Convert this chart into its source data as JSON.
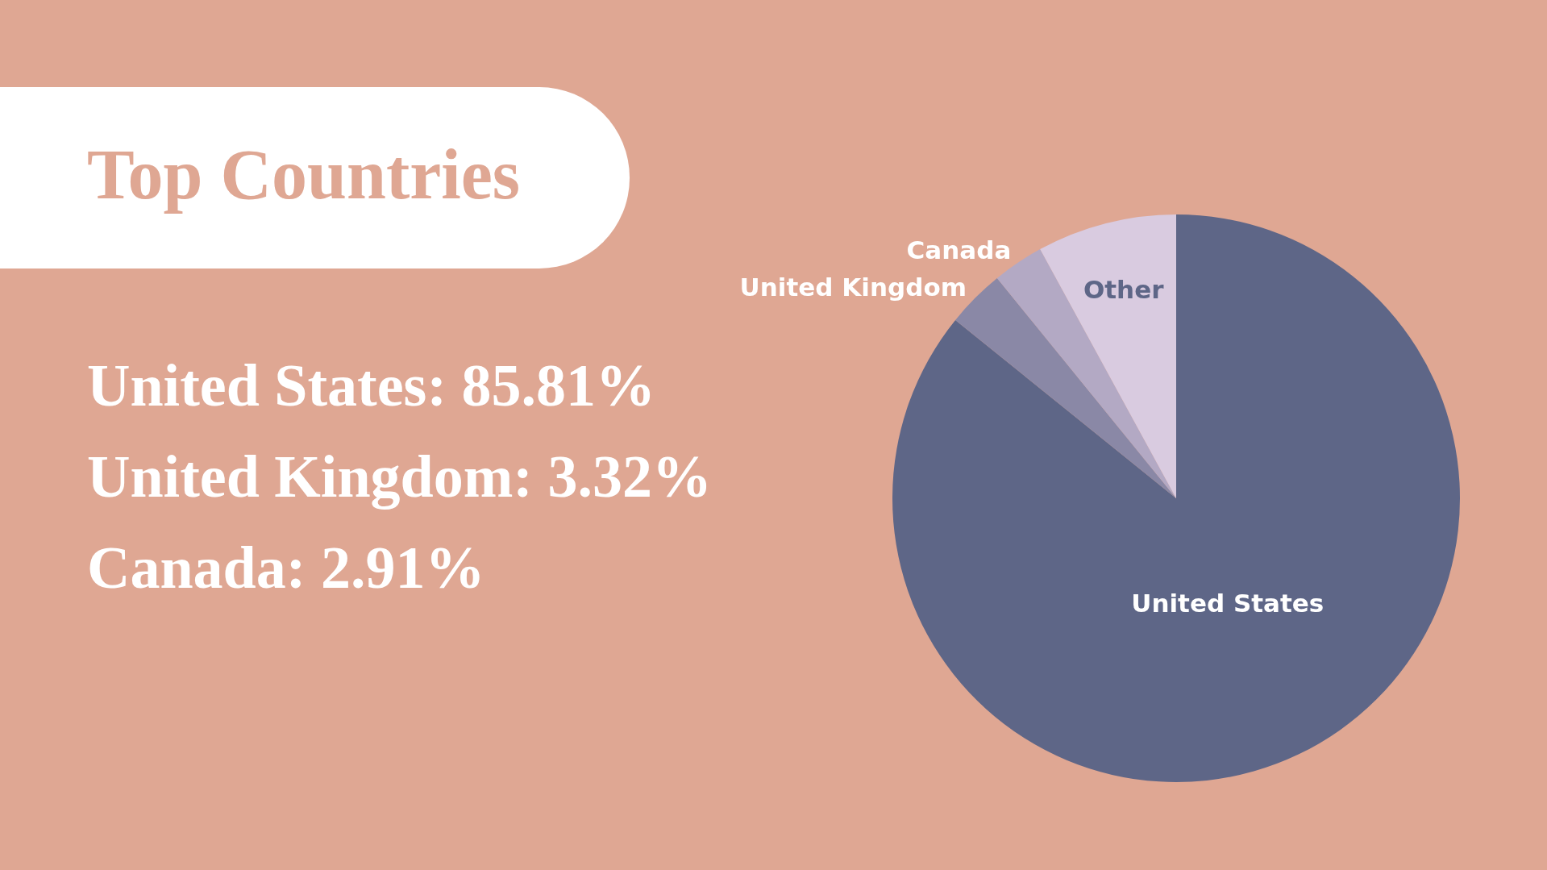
{
  "chart_data": {
    "type": "pie",
    "title": "Top Countries",
    "categories": [
      "United States",
      "United Kingdom",
      "Canada",
      "Other"
    ],
    "values": [
      85.81,
      3.32,
      2.91,
      7.96
    ],
    "colors": [
      "#5e6687",
      "#8a88a6",
      "#b3a9c4",
      "#d9cbe0"
    ],
    "annotations": [
      "United States: 85.81%",
      "United Kingdom: 3.32%",
      "Canada: 2.91%"
    ],
    "legend": false
  }
}
